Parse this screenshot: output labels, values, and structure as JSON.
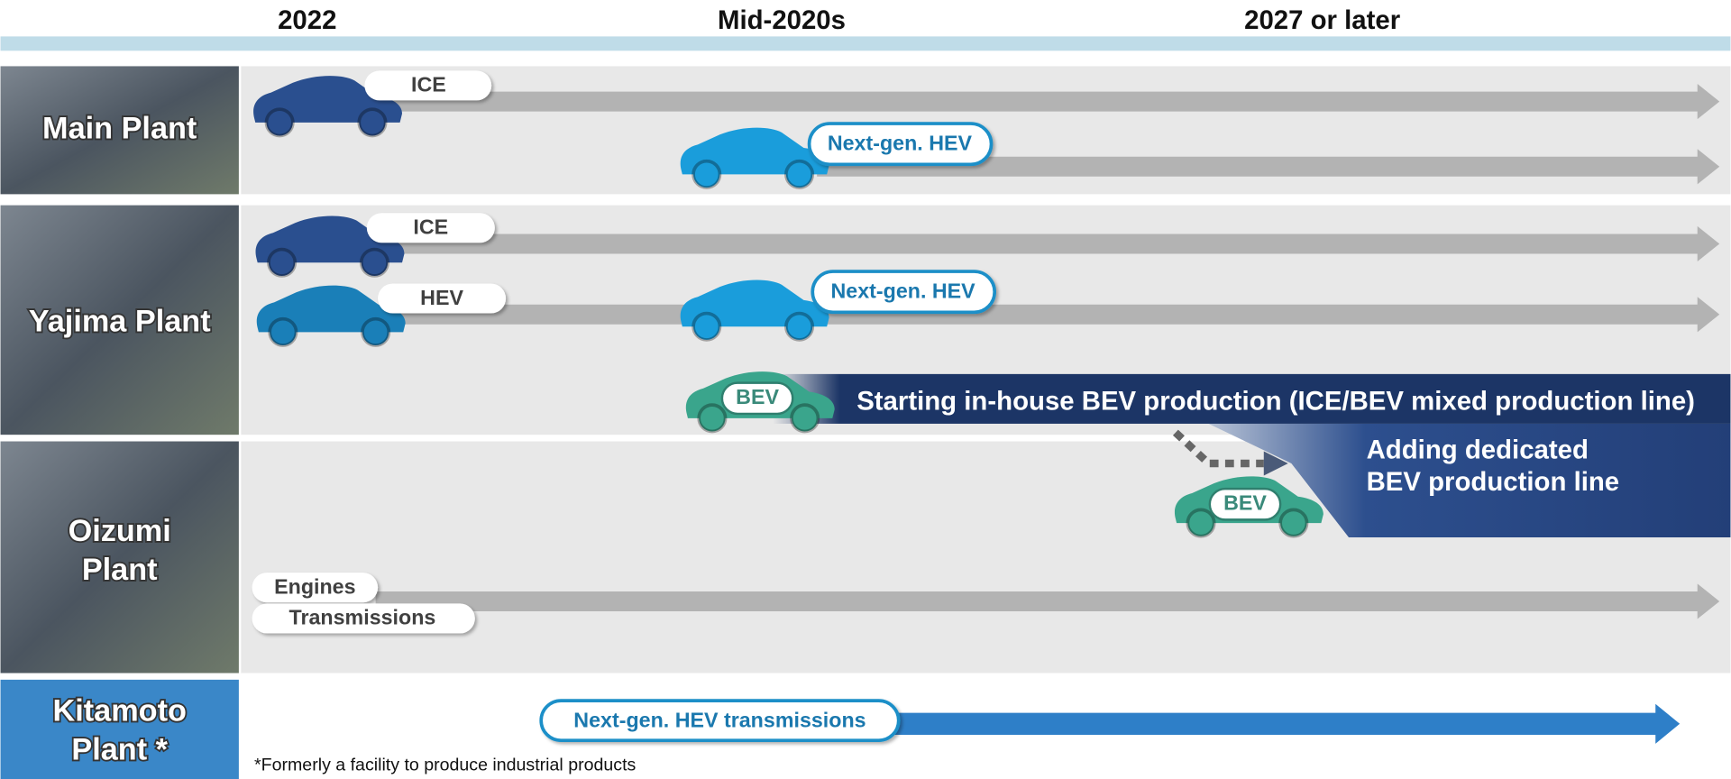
{
  "header": {
    "timeline": [
      "2022",
      "Mid-2020s",
      "2027 or later"
    ]
  },
  "plants": [
    {
      "name": [
        "Main Plant"
      ],
      "labels": [
        "ICE",
        "Next-gen. HEV"
      ]
    },
    {
      "name": [
        "Yajima Plant"
      ],
      "labels": [
        "ICE",
        "HEV",
        "Next-gen. HEV",
        "BEV"
      ],
      "banner": "Starting in-house BEV production (ICE/BEV mixed production line)"
    },
    {
      "name": [
        "Oizumi",
        "Plant"
      ],
      "labels": [
        "Engines",
        "Transmissions",
        "BEV"
      ],
      "banner": [
        "Adding dedicated",
        "BEV production line"
      ]
    },
    {
      "name": [
        "Kitamoto",
        "Plant *"
      ],
      "labels": [
        "Next-gen. HEV transmissions"
      ]
    }
  ],
  "footnote": "*Formerly a facility to produce industrial products"
}
